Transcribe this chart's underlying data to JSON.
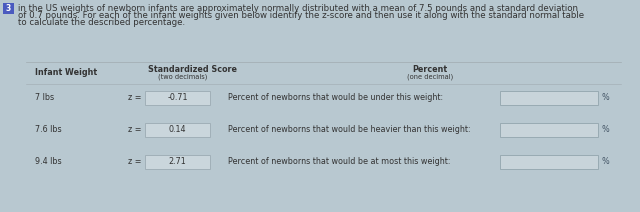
{
  "bg_color": "#b8c8d0",
  "header_text_line1": "in the US weights of newborn infants are approximately normally distributed with a mean of 7.5 pounds and a standard deviation",
  "header_text_line2": "of 0.7 pounds. For each of the infant weights given below identify the z-score and then use it along with the standard normal table",
  "header_text_line3": "to calculate the described percentage.",
  "col1_header": "Infant Weight",
  "col2_header": "Standardized Score",
  "col2_subheader": "(two decimals)",
  "col3_header": "Percent",
  "col3_subheader": "(one decimal)",
  "rows": [
    {
      "weight": "7 lbs",
      "z_val": "-0.71",
      "desc": "Percent of newborns that would be under this weight:"
    },
    {
      "weight": "7.6 lbs",
      "z_val": "0.14",
      "desc": "Percent of newborns that would be heavier than this weight:"
    },
    {
      "weight": "9.4 lbs",
      "z_val": "2.71",
      "desc": "Percent of newborns that would be at most this weight:"
    }
  ],
  "number_icon": "3",
  "icon_bg": "#4a5abf",
  "text_dark": "#333333",
  "text_mid": "#555566",
  "box_fill": "#cad6dc",
  "box_edge": "#a0b0b8",
  "answer_fill": "#c8d4da",
  "answer_edge": "#98aab2",
  "percent_color": "#445566",
  "header_fontsize": 6.2,
  "label_fontsize": 5.8,
  "row_fontsize": 5.8
}
